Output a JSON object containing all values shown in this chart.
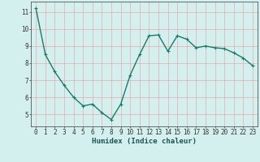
{
  "x": [
    0,
    1,
    2,
    3,
    4,
    5,
    6,
    7,
    8,
    9,
    10,
    11,
    12,
    13,
    14,
    15,
    16,
    17,
    18,
    19,
    20,
    21,
    22,
    23
  ],
  "y": [
    11.2,
    8.5,
    7.5,
    6.7,
    6.0,
    5.5,
    5.6,
    5.1,
    4.7,
    5.6,
    7.3,
    8.5,
    9.6,
    9.65,
    8.7,
    9.6,
    9.4,
    8.9,
    9.0,
    8.9,
    8.85,
    8.6,
    8.3,
    7.85
  ],
  "line_color": "#1a7a6a",
  "marker": "+",
  "marker_size": 3.5,
  "linewidth": 1.0,
  "bg_color": "#d4f0ee",
  "grid_color_minor": "#c8c8c8",
  "grid_color_major": "#e8aaaa",
  "xlabel": "Humidex (Indice chaleur)",
  "xlabel_fontsize": 6.5,
  "tick_fontsize": 5.5,
  "xlim": [
    -0.5,
    23.5
  ],
  "ylim": [
    4.3,
    11.6
  ],
  "yticks": [
    5,
    6,
    7,
    8,
    9,
    10,
    11
  ],
  "spine_color": "#555555"
}
